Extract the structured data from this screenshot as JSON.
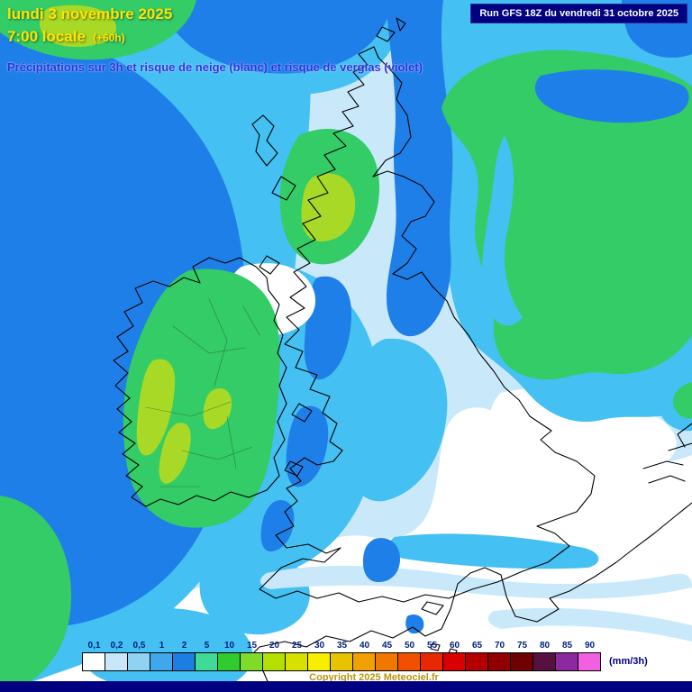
{
  "header": {
    "date_line": "lundi 3 novembre 2025",
    "time_line": "7:00 locale",
    "offset": "(+60h)",
    "subtitle": "Précipitations sur 3h et risque de neige (blanc) et risque de verglas (violet)"
  },
  "run_info": "Run GFS 18Z du vendredi 31 octobre 2025",
  "legend": {
    "unit": "(mm/3h)",
    "values": [
      "0,1",
      "0,2",
      "0,5",
      "1",
      "2",
      "5",
      "10",
      "15",
      "20",
      "25",
      "30",
      "35",
      "40",
      "45",
      "50",
      "55",
      "60",
      "65",
      "70",
      "75",
      "80",
      "85",
      "90"
    ],
    "colors": [
      "#ffffff",
      "#c8e8fa",
      "#8fd2f2",
      "#3fa8ea",
      "#1b7ee0",
      "#3eda96",
      "#2fcb2f",
      "#7edc28",
      "#b4e000",
      "#d8e000",
      "#f8ee00",
      "#e8c400",
      "#f0a000",
      "#f07800",
      "#f05000",
      "#e82800",
      "#d80000",
      "#b40000",
      "#900000",
      "#700000",
      "#581040",
      "#8c28a0",
      "#f060e0"
    ],
    "numbers_color": "#001f7a"
  },
  "copyright": "Copyright 2025 Meteociel.fr",
  "palette": {
    "white": "#ffffff",
    "pale_blue": "#c9e9fb",
    "cyan": "#45c0f2",
    "deep_blue": "#1f7fe8",
    "green": "#33cc66",
    "yellow_green": "#a8d926",
    "navy": "#000080",
    "title_yellow": "#ffe600",
    "subtitle_blue": "#3232e0",
    "copyright_gold": "#b8960c"
  }
}
